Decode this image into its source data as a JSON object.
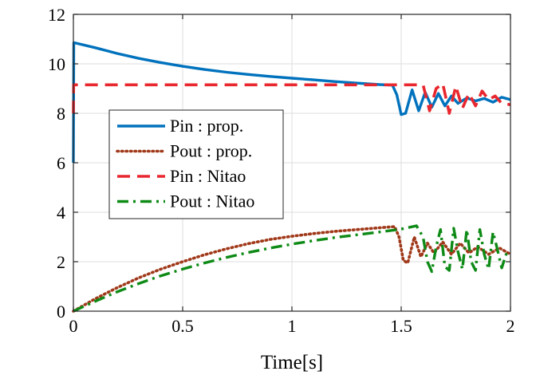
{
  "chart_data": {
    "type": "line",
    "xlabel": "Time[s]",
    "ylabel": "",
    "title": "",
    "xlim": [
      0,
      2
    ],
    "ylim": [
      0,
      12
    ],
    "xticks": [
      0,
      0.5,
      1,
      1.5,
      2
    ],
    "xtick_labels": [
      "0",
      "0.5",
      "1",
      "1.5",
      "2"
    ],
    "yticks": [
      0,
      2,
      4,
      6,
      8,
      10,
      12
    ],
    "ytick_labels": [
      "0",
      "2",
      "4",
      "6",
      "8",
      "10",
      "12"
    ],
    "grid": true,
    "legend_position": "left-middle",
    "series": [
      {
        "name": "Pin : prop.",
        "color": "#0072BD",
        "style": "solid",
        "x": [
          0,
          0.002,
          0.005,
          0.1,
          0.2,
          0.3,
          0.4,
          0.5,
          0.6,
          0.7,
          0.8,
          0.9,
          1.0,
          1.1,
          1.2,
          1.3,
          1.4,
          1.46,
          1.48,
          1.5,
          1.52,
          1.55,
          1.58,
          1.61,
          1.64,
          1.67,
          1.7,
          1.73,
          1.76,
          1.8,
          1.84,
          1.88,
          1.92,
          1.96,
          2.0
        ],
        "y": [
          6.0,
          10.85,
          10.85,
          10.65,
          10.42,
          10.22,
          10.05,
          9.9,
          9.77,
          9.66,
          9.57,
          9.49,
          9.42,
          9.35,
          9.28,
          9.22,
          9.16,
          9.14,
          8.75,
          7.95,
          8.0,
          8.95,
          8.1,
          8.85,
          8.25,
          8.8,
          8.3,
          8.7,
          8.4,
          8.62,
          8.5,
          8.6,
          8.45,
          8.65,
          8.55
        ]
      },
      {
        "name": "Pout : prop.",
        "color": "#A0391A",
        "style": "dotted",
        "x": [
          0,
          0.1,
          0.2,
          0.3,
          0.4,
          0.5,
          0.6,
          0.7,
          0.8,
          0.9,
          1.0,
          1.1,
          1.2,
          1.3,
          1.4,
          1.47,
          1.49,
          1.51,
          1.53,
          1.56,
          1.59,
          1.62,
          1.65,
          1.69,
          1.73,
          1.77,
          1.81,
          1.85,
          1.9,
          1.95,
          2.0
        ],
        "y": [
          0.0,
          0.5,
          0.95,
          1.35,
          1.7,
          2.0,
          2.28,
          2.52,
          2.73,
          2.9,
          3.03,
          3.14,
          3.23,
          3.3,
          3.37,
          3.42,
          3.0,
          2.05,
          1.95,
          3.0,
          2.2,
          2.75,
          2.35,
          2.8,
          2.3,
          2.75,
          2.35,
          2.6,
          2.3,
          2.55,
          2.3
        ]
      },
      {
        "name": "Pin : Nitao",
        "color": "#E8272E",
        "style": "dashed",
        "x": [
          0,
          0.001,
          0.003,
          1.6,
          1.63,
          1.66,
          1.69,
          1.72,
          1.75,
          1.78,
          1.81,
          1.84,
          1.87,
          1.9,
          1.93,
          1.96,
          2.0
        ],
        "y": [
          8.0,
          9.15,
          9.15,
          9.15,
          8.1,
          9.0,
          9.2,
          8.0,
          9.1,
          8.2,
          8.8,
          8.3,
          8.9,
          8.55,
          8.7,
          8.4,
          8.35
        ]
      },
      {
        "name": "Pout : Nitao",
        "color": "#0E8A16",
        "style": "dashdot",
        "x": [
          0,
          0.1,
          0.2,
          0.3,
          0.4,
          0.5,
          0.6,
          0.7,
          0.8,
          0.9,
          1.0,
          1.1,
          1.2,
          1.3,
          1.4,
          1.5,
          1.57,
          1.6,
          1.62,
          1.64,
          1.66,
          1.68,
          1.7,
          1.72,
          1.74,
          1.76,
          1.78,
          1.8,
          1.82,
          1.84,
          1.86,
          1.88,
          1.9,
          1.92,
          1.94,
          1.96,
          1.98,
          2.0
        ],
        "y": [
          0.0,
          0.4,
          0.78,
          1.12,
          1.43,
          1.7,
          1.95,
          2.17,
          2.37,
          2.55,
          2.71,
          2.85,
          2.98,
          3.09,
          3.2,
          3.32,
          3.45,
          3.0,
          2.0,
          1.6,
          2.6,
          3.3,
          1.8,
          1.65,
          3.35,
          2.4,
          1.7,
          3.3,
          2.0,
          1.65,
          3.3,
          2.3,
          1.7,
          3.2,
          2.5,
          1.75,
          2.3,
          2.2
        ]
      }
    ]
  }
}
